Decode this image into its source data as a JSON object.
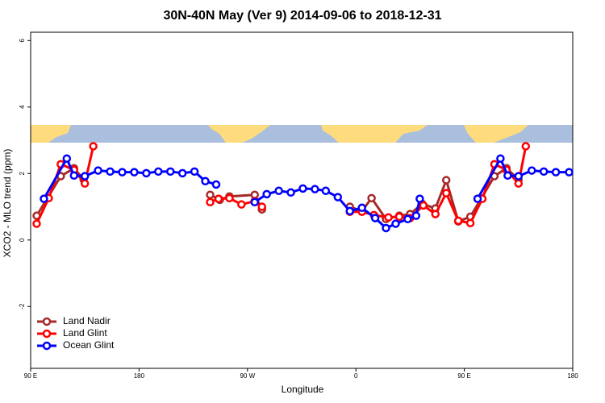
{
  "chart_data": {
    "type": "line",
    "title": "30N-40N May (Ver 9)   2014-09-06 to 2018-12-31",
    "x_label": "Longitude",
    "y_label": "XCO2 - MLO trend (ppm)",
    "xlim": [
      90,
      540
    ],
    "xticks": [
      {
        "value": 90,
        "label": "90 E"
      },
      180,
      {
        "value": 270,
        "label": "90 W"
      },
      {
        "value": 360,
        "label": "0"
      },
      {
        "value": 450,
        "label": "90 E"
      },
      {
        "value": 540,
        "label": "180"
      }
    ],
    "ylim": [
      -3.86,
      6.25
    ],
    "yticks": [
      -2,
      0,
      2,
      4,
      6
    ],
    "legend": "bottomleft",
    "series": [
      {
        "name": "Land Nadir",
        "color": "#a52a2a",
        "x": [
          95,
          115,
          126,
          134,
          null,
          239,
          247,
          255,
          276,
          282,
          null,
          355,
          365,
          373,
          385,
          396,
          405,
          415,
          426,
          435,
          445,
          455,
          475,
          485,
          495
        ],
        "values": [
          0.73,
          1.92,
          2.16,
          1.82,
          null,
          1.36,
          1.21,
          1.31,
          1.36,
          0.92,
          null,
          1.0,
          0.87,
          1.26,
          0.63,
          0.73,
          0.78,
          1.09,
          0.95,
          1.8,
          0.56,
          0.7,
          1.92,
          2.16,
          1.82
        ]
      },
      {
        "name": "Land Glint",
        "color": "#ff0000",
        "x": [
          95,
          105,
          115,
          126,
          135,
          142,
          null,
          239,
          246,
          255,
          265,
          276,
          282,
          null,
          355,
          365,
          375,
          387,
          396,
          405,
          416,
          426,
          435,
          445,
          455,
          465,
          475,
          485,
          495,
          501
        ],
        "values": [
          0.49,
          1.26,
          2.28,
          2.11,
          1.7,
          2.82,
          null,
          1.14,
          1.24,
          1.26,
          1.07,
          1.17,
          1.0,
          null,
          0.85,
          0.85,
          0.75,
          0.68,
          0.7,
          0.66,
          1.04,
          0.78,
          1.41,
          0.58,
          0.51,
          1.24,
          2.28,
          2.11,
          1.7,
          2.82
        ]
      },
      {
        "name": "Ocean Glint",
        "color": "#0000ff",
        "x": [
          101,
          120,
          126,
          135,
          146,
          156,
          166,
          176,
          186,
          196,
          206,
          216,
          226,
          235,
          244,
          null,
          276,
          286,
          296,
          306,
          316,
          326,
          335,
          345,
          355,
          365,
          376,
          385,
          393,
          403,
          410,
          413,
          null,
          461,
          480,
          486,
          495,
          506,
          516,
          526,
          537
        ],
        "values": [
          1.24,
          2.45,
          1.94,
          1.92,
          2.09,
          2.06,
          2.04,
          2.04,
          2.01,
          2.06,
          2.06,
          2.01,
          2.06,
          1.77,
          1.67,
          null,
          1.14,
          1.38,
          1.48,
          1.43,
          1.55,
          1.53,
          1.48,
          1.29,
          0.87,
          0.97,
          0.66,
          0.36,
          0.49,
          0.63,
          0.73,
          1.24,
          null,
          1.24,
          2.45,
          1.94,
          1.92,
          2.09,
          2.06,
          2.04,
          2.04
        ]
      }
    ]
  }
}
